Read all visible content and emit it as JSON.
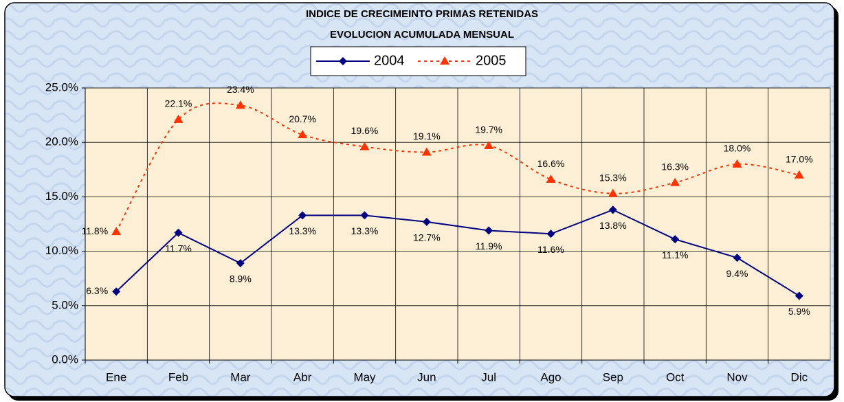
{
  "chart_data": {
    "type": "line",
    "title": "INDICE DE CRECIMEINTO PRIMAS RETENIDAS",
    "subtitle": "EVOLUCION ACUMULADA MENSUAL",
    "categories": [
      "Ene",
      "Feb",
      "Mar",
      "Abr",
      "May",
      "Jun",
      "Jul",
      "Ago",
      "Sep",
      "Oct",
      "Nov",
      "Dic"
    ],
    "series": [
      {
        "name": "2004",
        "color": "#000080",
        "marker": "diamond",
        "line": "solid",
        "values": [
          6.3,
          11.7,
          8.9,
          13.3,
          13.3,
          12.7,
          11.9,
          11.6,
          13.8,
          11.1,
          9.4,
          5.9
        ],
        "value_labels": [
          "6.3%",
          "11.7%",
          "8.9%",
          "13.3%",
          "13.3%",
          "12.7%",
          "11.9%",
          "11.6%",
          "13.8%",
          "11.1%",
          "9.4%",
          "5.9%"
        ]
      },
      {
        "name": "2005",
        "color": "#ff3300",
        "marker": "triangle",
        "line": "dashed",
        "values": [
          11.8,
          22.1,
          23.4,
          20.7,
          19.6,
          19.1,
          19.7,
          16.6,
          15.3,
          16.3,
          18.0,
          17.0
        ],
        "value_labels": [
          "11.8%",
          "22.1%",
          "23.4%",
          "20.7%",
          "19.6%",
          "19.1%",
          "19.7%",
          "16.6%",
          "15.3%",
          "16.3%",
          "18.0%",
          "17.0%"
        ]
      }
    ],
    "ylim": [
      0,
      25
    ],
    "yticks": [
      {
        "value": 0,
        "label": "0.0%"
      },
      {
        "value": 5,
        "label": "5.0%"
      },
      {
        "value": 10,
        "label": "10.0%"
      },
      {
        "value": 15,
        "label": "15.0%"
      },
      {
        "value": 20,
        "label": "20.0%"
      },
      {
        "value": 25,
        "label": "25.0%"
      }
    ],
    "grid": true
  }
}
